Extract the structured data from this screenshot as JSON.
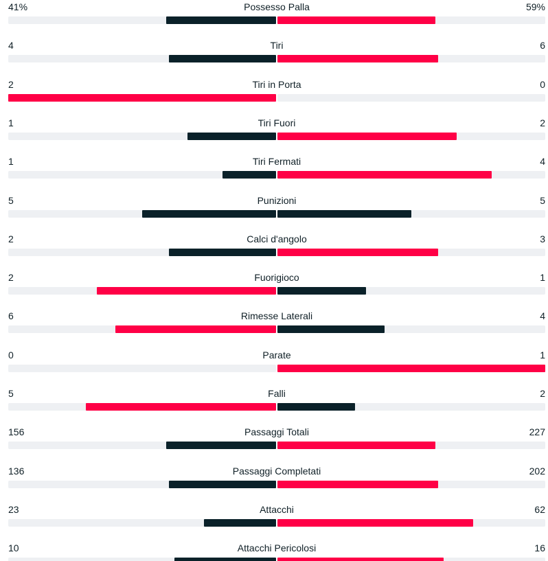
{
  "colors": {
    "leading": "#ff0046",
    "trailing": "#0a2129",
    "track": "#eef0f3"
  },
  "stats": [
    {
      "label": "Possesso Palla",
      "home": "41%",
      "away": "59%",
      "home_fraction": 0.41,
      "away_fraction": 0.59
    },
    {
      "label": "Tiri",
      "home": "4",
      "away": "6",
      "home_fraction": 0.4,
      "away_fraction": 0.6
    },
    {
      "label": "Tiri in Porta",
      "home": "2",
      "away": "0",
      "home_fraction": 1.0,
      "away_fraction": 0.0
    },
    {
      "label": "Tiri Fuori",
      "home": "1",
      "away": "2",
      "home_fraction": 0.33,
      "away_fraction": 0.67
    },
    {
      "label": "Tiri Fermati",
      "home": "1",
      "away": "4",
      "home_fraction": 0.2,
      "away_fraction": 0.8
    },
    {
      "label": "Punizioni",
      "home": "5",
      "away": "5",
      "home_fraction": 0.5,
      "away_fraction": 0.5
    },
    {
      "label": "Calci d'angolo",
      "home": "2",
      "away": "3",
      "home_fraction": 0.4,
      "away_fraction": 0.6
    },
    {
      "label": "Fuorigioco",
      "home": "2",
      "away": "1",
      "home_fraction": 0.67,
      "away_fraction": 0.33
    },
    {
      "label": "Rimesse Laterali",
      "home": "6",
      "away": "4",
      "home_fraction": 0.6,
      "away_fraction": 0.4
    },
    {
      "label": "Parate",
      "home": "0",
      "away": "1",
      "home_fraction": 0.0,
      "away_fraction": 1.0
    },
    {
      "label": "Falli",
      "home": "5",
      "away": "2",
      "home_fraction": 0.71,
      "away_fraction": 0.29
    },
    {
      "label": "Passaggi Totali",
      "home": "156",
      "away": "227",
      "home_fraction": 0.41,
      "away_fraction": 0.59
    },
    {
      "label": "Passaggi Completati",
      "home": "136",
      "away": "202",
      "home_fraction": 0.4,
      "away_fraction": 0.6
    },
    {
      "label": "Attacchi",
      "home": "23",
      "away": "62",
      "home_fraction": 0.27,
      "away_fraction": 0.73
    },
    {
      "label": "Attacchi Pericolosi",
      "home": "10",
      "away": "16",
      "home_fraction": 0.38,
      "away_fraction": 0.62
    }
  ]
}
